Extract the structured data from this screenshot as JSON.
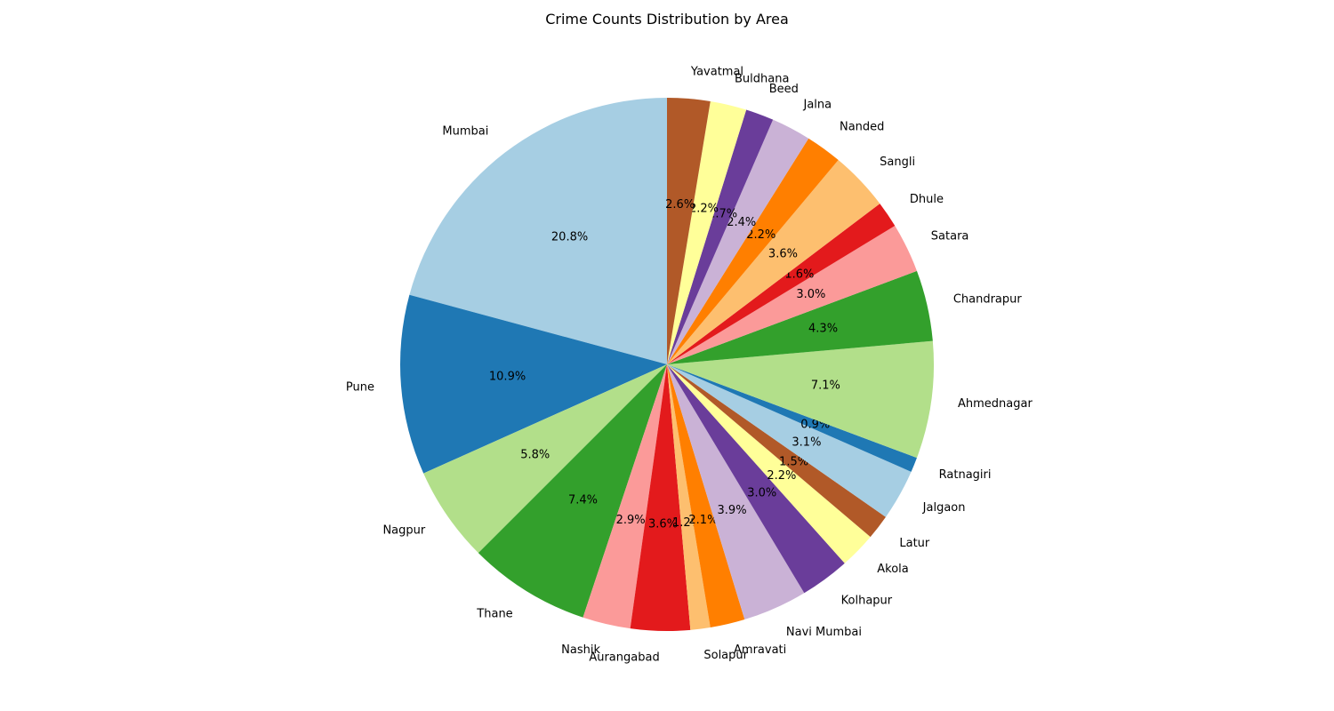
{
  "chart_data": {
    "type": "pie",
    "title": "Crime Counts Distribution by Area",
    "start_angle": "top, counter-clockwise",
    "slices": [
      {
        "label": "Mumbai",
        "value": 20.8,
        "pct_label": "20.8%",
        "color": "#a6cee3"
      },
      {
        "label": "Pune",
        "value": 10.9,
        "pct_label": "10.9%",
        "color": "#1f78b4"
      },
      {
        "label": "Nagpur",
        "value": 5.8,
        "pct_label": "5.8%",
        "color": "#b2df8a"
      },
      {
        "label": "Thane",
        "value": 7.4,
        "pct_label": "7.4%",
        "color": "#33a02c"
      },
      {
        "label": "Nashik",
        "value": 2.9,
        "pct_label": "2.9%",
        "color": "#fb9a99"
      },
      {
        "label": "Aurangabad",
        "value": 3.6,
        "pct_label": "3.6%",
        "color": "#e31a1c"
      },
      {
        "label": "Solapur",
        "value": 1.2,
        "pct_label": "1.2%",
        "color": "#fdbf6f"
      },
      {
        "label": "Amravati",
        "value": 2.1,
        "pct_label": "2.1%",
        "color": "#ff7f00"
      },
      {
        "label": "Navi Mumbai",
        "value": 3.9,
        "pct_label": "3.9%",
        "color": "#cab2d6"
      },
      {
        "label": "Kolhapur",
        "value": 3.0,
        "pct_label": "3.0%",
        "color": "#6a3d9a"
      },
      {
        "label": "Akola",
        "value": 2.2,
        "pct_label": "2.2%",
        "color": "#ffff99"
      },
      {
        "label": "Latur",
        "value": 1.5,
        "pct_label": "1.5%",
        "color": "#b15928"
      },
      {
        "label": "Jalgaon",
        "value": 3.1,
        "pct_label": "3.1%",
        "color": "#a6cee3"
      },
      {
        "label": "Ratnagiri",
        "value": 0.9,
        "pct_label": "0.9%",
        "color": "#1f78b4"
      },
      {
        "label": "Ahmednagar",
        "value": 7.1,
        "pct_label": "7.1%",
        "color": "#b2df8a"
      },
      {
        "label": "Chandrapur",
        "value": 4.3,
        "pct_label": "4.3%",
        "color": "#33a02c"
      },
      {
        "label": "Satara",
        "value": 3.0,
        "pct_label": "3.0%",
        "color": "#fb9a99"
      },
      {
        "label": "Dhule",
        "value": 1.6,
        "pct_label": "1.6%",
        "color": "#e31a1c"
      },
      {
        "label": "Sangli",
        "value": 3.6,
        "pct_label": "3.6%",
        "color": "#fdbf6f"
      },
      {
        "label": "Nanded",
        "value": 2.2,
        "pct_label": "2.2%",
        "color": "#ff7f00"
      },
      {
        "label": "Jalna",
        "value": 2.4,
        "pct_label": "2.4%",
        "color": "#cab2d6"
      },
      {
        "label": "Beed",
        "value": 1.7,
        "pct_label": "1.7%",
        "color": "#6a3d9a"
      },
      {
        "label": "Buldhana",
        "value": 2.2,
        "pct_label": "2.2%",
        "color": "#ffff99"
      },
      {
        "label": "Yavatmal",
        "value": 2.6,
        "pct_label": "2.6%",
        "color": "#b15928"
      }
    ]
  }
}
